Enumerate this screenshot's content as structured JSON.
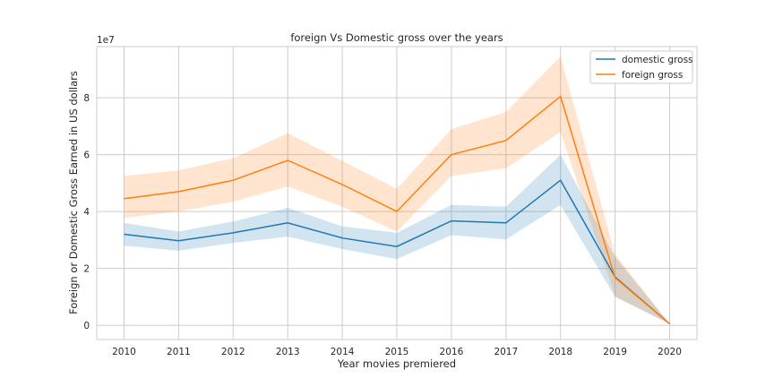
{
  "chart_data": {
    "type": "line",
    "title": "foreign Vs Domestic gross over the years",
    "xlabel": "Year movies premiered",
    "ylabel": "Foreign or Domestic Gross Earned in US dollars",
    "y_multiplier_label": "1e7",
    "x": [
      "2010",
      "2011",
      "2012",
      "2013",
      "2014",
      "2015",
      "2016",
      "2017",
      "2018",
      "2019",
      "2020"
    ],
    "y_ticks": [
      "0",
      "2",
      "4",
      "6",
      "8"
    ],
    "ylim": [
      -0.5,
      9.8
    ],
    "xlim": [
      2009.5,
      2020.5
    ],
    "grid": true,
    "legend_position": "top-right",
    "series": [
      {
        "name": "domestic gross",
        "color": "#1f77b4",
        "values": [
          3.2,
          2.97,
          3.25,
          3.6,
          3.07,
          2.77,
          3.67,
          3.6,
          5.1,
          1.7,
          0.05
        ],
        "ci_low": [
          2.8,
          2.62,
          2.9,
          3.12,
          2.68,
          2.33,
          3.17,
          3.02,
          4.23,
          1.0,
          0.05
        ],
        "ci_high": [
          3.6,
          3.3,
          3.65,
          4.13,
          3.48,
          3.25,
          4.23,
          4.17,
          6.0,
          2.4,
          0.05
        ]
      },
      {
        "name": "foreign gross",
        "color": "#ff7f0e",
        "values": [
          4.45,
          4.7,
          5.1,
          5.8,
          4.95,
          4.0,
          6.0,
          6.5,
          8.05,
          1.67,
          0.05
        ],
        "ci_low": [
          3.78,
          4.0,
          4.35,
          4.88,
          4.17,
          3.3,
          5.25,
          5.52,
          6.8,
          1.02,
          0.05
        ],
        "ci_high": [
          5.25,
          5.45,
          5.88,
          6.75,
          5.78,
          4.8,
          6.9,
          7.5,
          9.45,
          2.5,
          0.05
        ]
      }
    ]
  }
}
